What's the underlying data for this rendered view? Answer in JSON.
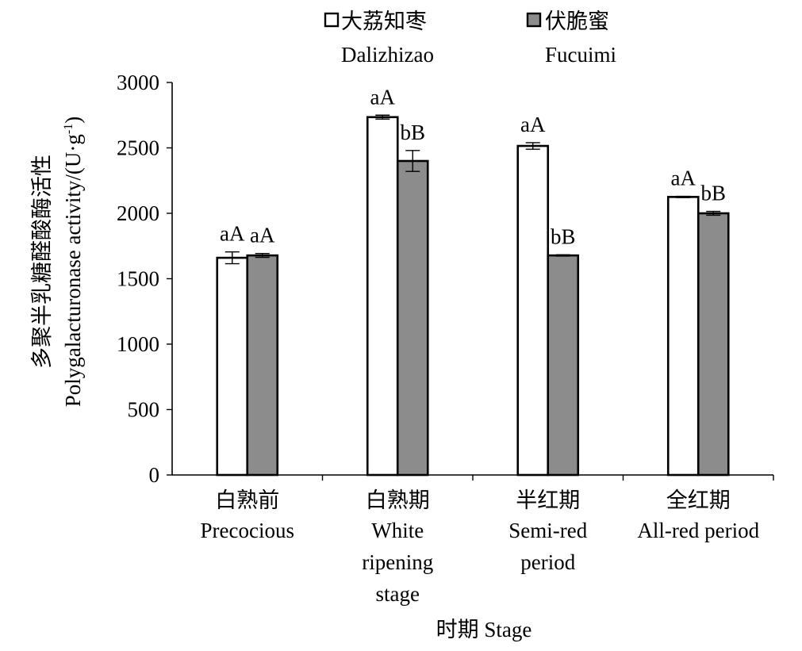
{
  "chart_data": {
    "type": "bar",
    "xlabel": "时期 Stage",
    "ylabel_cn": "多聚半乳糖醛酸酶活性",
    "ylabel_en": "Polygalacturonase activity/(U·g",
    "ylabel_sup": "-1",
    "ylabel_end": ")",
    "ylim": [
      0,
      3000
    ],
    "yticks": [
      0,
      500,
      1000,
      1500,
      2000,
      2500,
      3000
    ],
    "grid": false,
    "legend_position": "top",
    "categories": [
      {
        "cn": "白熟前",
        "en": [
          "Precocious"
        ]
      },
      {
        "cn": "白熟期",
        "en": [
          "White",
          "ripening",
          "stage"
        ]
      },
      {
        "cn": "半红期",
        "en": [
          "Semi-red",
          "period"
        ]
      },
      {
        "cn": "全红期",
        "en": [
          "All-red period"
        ]
      }
    ],
    "series": [
      {
        "name": "大荔知枣",
        "name_en": "Dalizhizao",
        "color": "#ffffff",
        "values": [
          1660,
          2735,
          2515,
          2125
        ],
        "errors": [
          45,
          15,
          25,
          5
        ],
        "labels": [
          "aA",
          "aA",
          "aA",
          "aA"
        ]
      },
      {
        "name": "伏脆蜜",
        "name_en": "Fucuimi",
        "color": "#8c8c8c",
        "values": [
          1678,
          2400,
          1678,
          2000
        ],
        "errors": [
          15,
          80,
          5,
          15
        ],
        "labels": [
          "aA",
          "bB",
          "bB",
          "bB"
        ]
      }
    ]
  }
}
